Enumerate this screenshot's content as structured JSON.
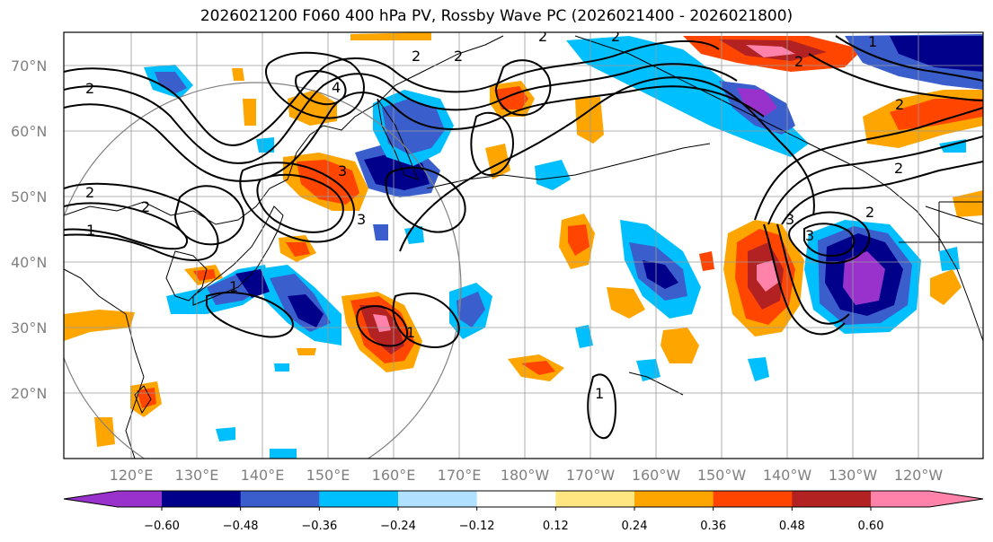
{
  "title": "2026021200 F060 400 hPa PV, Rossby Wave PC (2026021400 - 2026021800)",
  "lat_labels": [
    "70°N",
    "60°N",
    "50°N",
    "40°N",
    "30°N",
    "20°N"
  ],
  "lon_labels": [
    "120°E",
    "130°E",
    "140°E",
    "150°E",
    "160°E",
    "170°E",
    "180°W",
    "170°W",
    "160°W",
    "150°W",
    "140°W",
    "130°W",
    "120°W"
  ],
  "colorbar": {
    "ticks": [
      "−0.60",
      "−0.48",
      "−0.36",
      "−0.24",
      "−0.12",
      "0.12",
      "0.24",
      "0.36",
      "0.48",
      "0.60"
    ],
    "colors": {
      "under": "#9932cc",
      "bins": [
        "#9932cc",
        "#00008b",
        "#3a5fcd",
        "#00bfff",
        "#b0e2ff",
        "#ffffff",
        "#ffe680",
        "#ffa500",
        "#ff4500",
        "#b22222",
        "#ff82ab"
      ],
      "over": "#ff82ab"
    }
  },
  "contour_labels": [
    "2",
    "2",
    "4",
    "2",
    "2",
    "2",
    "3",
    "3",
    "2",
    "2",
    "1",
    "1",
    "1",
    "2",
    "2",
    "3",
    "3",
    "2",
    "2",
    "1",
    "1"
  ]
}
